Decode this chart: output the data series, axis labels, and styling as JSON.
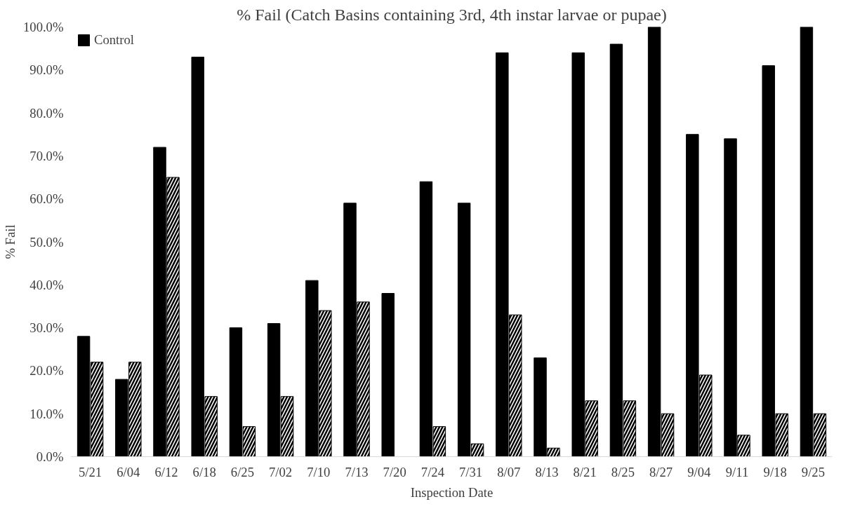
{
  "chart_data": {
    "type": "bar",
    "title": "% Fail (Catch Basins containing 3rd, 4th instar larvae or pupae)",
    "xlabel": "Inspection Date",
    "ylabel": "% Fail",
    "categories": [
      "5/21",
      "6/04",
      "6/12",
      "6/18",
      "6/25",
      "7/02",
      "7/10",
      "7/13",
      "7/20",
      "7/24",
      "7/31",
      "8/07",
      "8/13",
      "8/21",
      "8/25",
      "8/27",
      "9/04",
      "9/11",
      "9/18",
      "9/25"
    ],
    "series": [
      {
        "name": "Control",
        "color": "#000000",
        "values": [
          28,
          18,
          72,
          93,
          30,
          31,
          41,
          59,
          38,
          64,
          59,
          94,
          23,
          94,
          96,
          100,
          75,
          74,
          91,
          100
        ]
      },
      {
        "color": "#000000",
        "values": [
          22,
          22,
          65,
          14,
          7,
          14,
          34,
          36,
          null,
          7,
          3,
          33,
          2,
          13,
          13,
          10,
          19,
          5,
          10,
          10
        ]
      }
    ],
    "ylim": [
      0,
      100
    ],
    "yticks": [
      {
        "value": 0,
        "label": "0.0%"
      },
      {
        "value": 10,
        "label": "10.0%"
      },
      {
        "value": 20,
        "label": "20.0%"
      },
      {
        "value": 30,
        "label": "30.0%"
      },
      {
        "value": 40,
        "label": "40.0%"
      },
      {
        "value": 50,
        "label": "50.0%"
      },
      {
        "value": 60,
        "label": "60.0%"
      },
      {
        "value": 70,
        "label": "70.0%"
      },
      {
        "value": 80,
        "label": "80.0%"
      },
      {
        "value": 90,
        "label": "90.0%"
      },
      {
        "value": 100,
        "label": "100.0%"
      }
    ],
    "legend": "top left",
    "grid": false
  }
}
